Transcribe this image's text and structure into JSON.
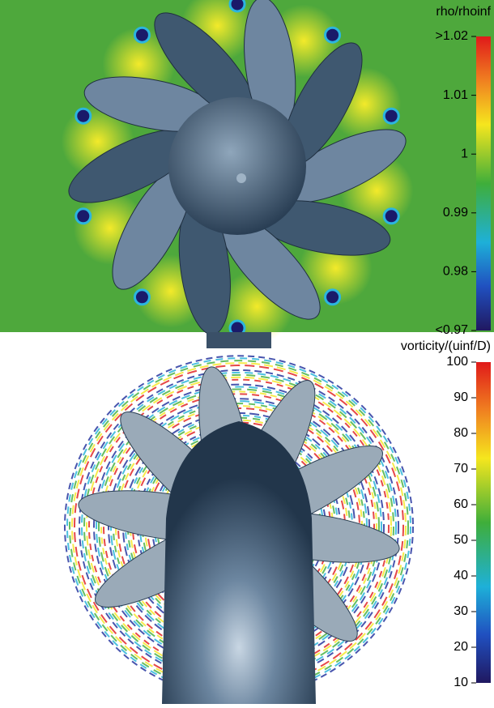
{
  "panels": [
    {
      "colorbar": {
        "title": "rho/rhoinf",
        "range": [
          0.97,
          1.02
        ],
        "ticks": [
          {
            "value": 1.02,
            "label": ">1.02"
          },
          1.01,
          1,
          0.99,
          0.98,
          {
            "value": 0.97,
            "label": "<0.97"
          }
        ]
      }
    },
    {
      "colorbar": {
        "title": "vorticity/(uinf/D)",
        "range": [
          10,
          100
        ],
        "ticks": [
          100,
          90,
          80,
          70,
          60,
          50,
          40,
          30,
          20,
          10
        ]
      }
    }
  ]
}
